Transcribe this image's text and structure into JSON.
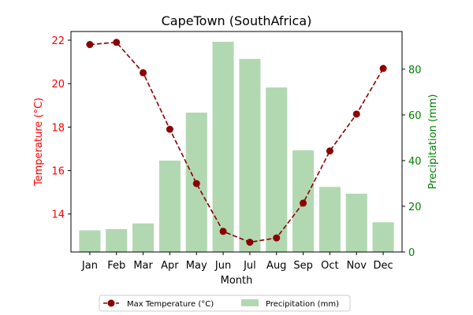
{
  "chart_data": {
    "type": "bar",
    "title": "CapeTown (SouthAfrica)",
    "xlabel": "Month",
    "categories": [
      "Jan",
      "Feb",
      "Mar",
      "Apr",
      "May",
      "Jun",
      "Jul",
      "Aug",
      "Sep",
      "Oct",
      "Nov",
      "Dec"
    ],
    "series": [
      {
        "name": "Max Temperature (°C)",
        "type": "line",
        "axis": "left",
        "color": "#8b0000",
        "line_style": "dashed",
        "marker": "circle",
        "values": [
          21.8,
          21.9,
          20.5,
          17.9,
          15.4,
          13.2,
          12.7,
          12.9,
          14.5,
          16.9,
          18.6,
          20.7
        ]
      },
      {
        "name": "Precipitation (mm)",
        "type": "bar",
        "axis": "right",
        "color": "#b2d8b2",
        "values": [
          9.5,
          10,
          12.5,
          40,
          61,
          92,
          84.5,
          72,
          44.5,
          28.5,
          25.5,
          13
        ]
      }
    ],
    "y_left": {
      "label": "Temperature (°C)",
      "color": "#ff0000",
      "range": [
        12.25,
        22.4
      ],
      "ticks": [
        14,
        16,
        18,
        20,
        22
      ]
    },
    "y_right": {
      "label": "Precipitation (mm)",
      "color": "#008000",
      "range": [
        0,
        96.5
      ],
      "ticks": [
        0,
        20,
        40,
        60,
        80
      ]
    },
    "grid": false,
    "legend_position": "bottom-center"
  }
}
